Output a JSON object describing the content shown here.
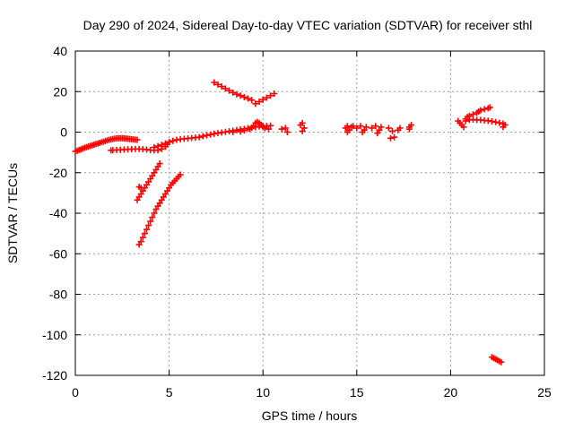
{
  "chart_data": {
    "type": "scatter",
    "title": "Day 290 of 2024, Sidereal Day-to-day VTEC variation (SDTVAR) for receiver sthl",
    "xlabel": "GPS time / hours",
    "ylabel": "SDTVAR / TECUs",
    "xlim": [
      0,
      25
    ],
    "ylim": [
      -120,
      40
    ],
    "xticks": [
      0,
      5,
      10,
      15,
      20,
      25
    ],
    "xtick_labels": [
      "0",
      "5",
      "10",
      "15",
      "20",
      "25"
    ],
    "yticks": [
      -120,
      -100,
      -80,
      -60,
      -40,
      -20,
      0,
      20,
      40
    ],
    "ytick_labels": [
      "-120",
      "-100",
      "-80",
      "-60",
      "-40",
      "-20",
      "0",
      "20",
      "40"
    ],
    "grid": true,
    "marker": "+",
    "color": "#ff0000",
    "points": [
      [
        0.0,
        -9.5
      ],
      [
        0.1,
        -9.2
      ],
      [
        0.2,
        -8.8
      ],
      [
        0.3,
        -8.5
      ],
      [
        0.4,
        -8.1
      ],
      [
        0.5,
        -7.7
      ],
      [
        0.6,
        -7.4
      ],
      [
        0.7,
        -7.1
      ],
      [
        0.8,
        -6.8
      ],
      [
        0.9,
        -6.5
      ],
      [
        1.0,
        -6.2
      ],
      [
        1.1,
        -5.9
      ],
      [
        1.2,
        -5.6
      ],
      [
        1.3,
        -5.3
      ],
      [
        1.4,
        -5.0
      ],
      [
        1.5,
        -4.7
      ],
      [
        1.6,
        -4.4
      ],
      [
        1.7,
        -4.1
      ],
      [
        1.8,
        -3.8
      ],
      [
        1.9,
        -3.6
      ],
      [
        2.0,
        -3.4
      ],
      [
        2.1,
        -3.2
      ],
      [
        2.2,
        -3.1
      ],
      [
        2.3,
        -3.0
      ],
      [
        2.4,
        -3.0
      ],
      [
        2.5,
        -3.0
      ],
      [
        2.6,
        -3.1
      ],
      [
        2.7,
        -3.2
      ],
      [
        2.8,
        -3.3
      ],
      [
        2.9,
        -3.4
      ],
      [
        3.0,
        -3.5
      ],
      [
        3.1,
        -3.6
      ],
      [
        3.2,
        -3.7
      ],
      [
        3.3,
        -3.8
      ],
      [
        1.9,
        -9.0
      ],
      [
        2.0,
        -8.9
      ],
      [
        2.2,
        -8.8
      ],
      [
        2.4,
        -8.7
      ],
      [
        2.6,
        -8.6
      ],
      [
        2.8,
        -8.5
      ],
      [
        3.0,
        -8.4
      ],
      [
        3.2,
        -8.3
      ],
      [
        3.4,
        -8.3
      ],
      [
        3.6,
        -8.4
      ],
      [
        3.8,
        -8.6
      ],
      [
        4.0,
        -8.9
      ],
      [
        4.2,
        -9.0
      ],
      [
        4.4,
        -8.9
      ],
      [
        4.6,
        -8.3
      ],
      [
        4.8,
        -7.2
      ],
      [
        4.9,
        -6.0
      ],
      [
        4.2,
        -7.5
      ],
      [
        4.4,
        -6.9
      ],
      [
        4.6,
        -6.3
      ],
      [
        4.8,
        -5.6
      ],
      [
        5.0,
        -4.9
      ],
      [
        5.2,
        -4.3
      ],
      [
        5.4,
        -3.8
      ],
      [
        5.6,
        -3.5
      ],
      [
        5.8,
        -3.3
      ],
      [
        6.0,
        -3.1
      ],
      [
        6.2,
        -2.9
      ],
      [
        6.4,
        -2.7
      ],
      [
        6.6,
        -2.5
      ],
      [
        6.8,
        -2.0
      ],
      [
        7.0,
        -1.6
      ],
      [
        7.2,
        -1.2
      ],
      [
        7.4,
        -0.8
      ],
      [
        7.6,
        -0.5
      ],
      [
        7.8,
        -0.2
      ],
      [
        8.0,
        0.1
      ],
      [
        8.2,
        0.4
      ],
      [
        8.4,
        0.7
      ],
      [
        8.6,
        1.0
      ],
      [
        8.8,
        1.3
      ],
      [
        9.0,
        1.6
      ],
      [
        9.2,
        1.9
      ],
      [
        9.4,
        2.2
      ],
      [
        9.6,
        2.5
      ],
      [
        9.8,
        2.8
      ],
      [
        10.0,
        3.0
      ],
      [
        10.2,
        3.1
      ],
      [
        10.4,
        3.2
      ],
      [
        8.4,
        0.0
      ],
      [
        8.8,
        0.3
      ],
      [
        9.0,
        0.8
      ],
      [
        9.3,
        1.5
      ],
      [
        9.5,
        3.0
      ],
      [
        9.6,
        4.5
      ],
      [
        9.7,
        5.0
      ],
      [
        9.8,
        4.5
      ],
      [
        9.9,
        3.6
      ],
      [
        10.0,
        2.5
      ],
      [
        10.1,
        2.0
      ],
      [
        10.3,
        1.5
      ],
      [
        3.4,
        -27.0
      ],
      [
        3.5,
        -27.5
      ],
      [
        3.3,
        -33.5
      ],
      [
        3.4,
        -32.0
      ],
      [
        3.5,
        -30.5
      ],
      [
        3.6,
        -29.0
      ],
      [
        3.7,
        -27.5
      ],
      [
        3.8,
        -26.0
      ],
      [
        3.9,
        -24.5
      ],
      [
        4.0,
        -23.0
      ],
      [
        4.1,
        -21.5
      ],
      [
        4.2,
        -20.0
      ],
      [
        4.3,
        -18.5
      ],
      [
        4.4,
        -17.0
      ],
      [
        4.5,
        -15.5
      ],
      [
        3.4,
        -55.5
      ],
      [
        3.5,
        -54.0
      ],
      [
        3.6,
        -52.0
      ],
      [
        3.7,
        -50.0
      ],
      [
        3.8,
        -48.0
      ],
      [
        3.9,
        -46.0
      ],
      [
        4.0,
        -44.0
      ],
      [
        4.1,
        -42.0
      ],
      [
        4.2,
        -40.0
      ],
      [
        4.3,
        -38.0
      ],
      [
        4.4,
        -36.5
      ],
      [
        4.5,
        -35.0
      ],
      [
        4.6,
        -33.5
      ],
      [
        4.7,
        -32.0
      ],
      [
        4.8,
        -30.5
      ],
      [
        4.9,
        -29.0
      ],
      [
        5.0,
        -27.5
      ],
      [
        5.1,
        -26.0
      ],
      [
        5.2,
        -25.0
      ],
      [
        5.3,
        -24.0
      ],
      [
        5.4,
        -23.0
      ],
      [
        5.5,
        -22.0
      ],
      [
        5.6,
        -21.0
      ],
      [
        7.4,
        24.5
      ],
      [
        7.6,
        23.5
      ],
      [
        7.8,
        22.5
      ],
      [
        8.0,
        21.5
      ],
      [
        8.2,
        20.5
      ],
      [
        8.4,
        19.5
      ],
      [
        8.6,
        18.7
      ],
      [
        8.8,
        18.0
      ],
      [
        9.0,
        17.3
      ],
      [
        9.2,
        16.6
      ],
      [
        9.4,
        15.8
      ],
      [
        9.6,
        14.0
      ],
      [
        9.8,
        15.0
      ],
      [
        10.0,
        16.0
      ],
      [
        10.2,
        17.0
      ],
      [
        10.4,
        18.0
      ],
      [
        10.6,
        19.0
      ],
      [
        11.0,
        1.5
      ],
      [
        11.2,
        2.0
      ],
      [
        11.3,
        0.0
      ],
      [
        12.0,
        3.5
      ],
      [
        12.1,
        4.5
      ],
      [
        12.2,
        2.0
      ],
      [
        12.1,
        0.5
      ],
      [
        14.4,
        2.0
      ],
      [
        14.5,
        3.0
      ],
      [
        14.6,
        1.0
      ],
      [
        14.7,
        2.5
      ],
      [
        14.5,
        0.0
      ],
      [
        14.8,
        3.0
      ],
      [
        15.0,
        2.0
      ],
      [
        15.2,
        3.0
      ],
      [
        15.4,
        1.0
      ],
      [
        15.5,
        2.5
      ],
      [
        15.3,
        0.0
      ],
      [
        15.8,
        2.0
      ],
      [
        16.0,
        3.0
      ],
      [
        16.2,
        1.0
      ],
      [
        16.3,
        2.5
      ],
      [
        16.1,
        -0.5
      ],
      [
        16.7,
        2.0
      ],
      [
        16.9,
        0.5
      ],
      [
        16.8,
        -3.0
      ],
      [
        17.0,
        -2.5
      ],
      [
        17.2,
        1.0
      ],
      [
        17.3,
        2.0
      ],
      [
        17.8,
        2.5
      ],
      [
        17.9,
        3.5
      ],
      [
        17.8,
        1.5
      ],
      [
        20.4,
        5.5
      ],
      [
        20.5,
        4.5
      ],
      [
        20.6,
        3.5
      ],
      [
        20.7,
        2.5
      ],
      [
        20.8,
        6.5
      ],
      [
        20.9,
        7.5
      ],
      [
        21.0,
        8.0
      ],
      [
        21.2,
        8.8
      ],
      [
        21.4,
        9.5
      ],
      [
        21.5,
        10.2
      ],
      [
        21.6,
        10.8
      ],
      [
        21.8,
        11.3
      ],
      [
        22.0,
        11.8
      ],
      [
        22.1,
        12.2
      ],
      [
        20.8,
        5.5
      ],
      [
        21.0,
        6.0
      ],
      [
        21.2,
        6.2
      ],
      [
        21.4,
        6.0
      ],
      [
        21.6,
        6.0
      ],
      [
        21.8,
        5.8
      ],
      [
        22.0,
        5.6
      ],
      [
        22.2,
        5.3
      ],
      [
        22.4,
        5.0
      ],
      [
        22.6,
        4.6
      ],
      [
        22.8,
        4.2
      ],
      [
        22.8,
        2.5
      ],
      [
        22.9,
        3.5
      ],
      [
        22.2,
        -111.0
      ],
      [
        22.3,
        -111.5
      ],
      [
        22.4,
        -112.0
      ],
      [
        22.5,
        -112.5
      ],
      [
        22.6,
        -113.0
      ],
      [
        22.7,
        -113.5
      ]
    ]
  }
}
